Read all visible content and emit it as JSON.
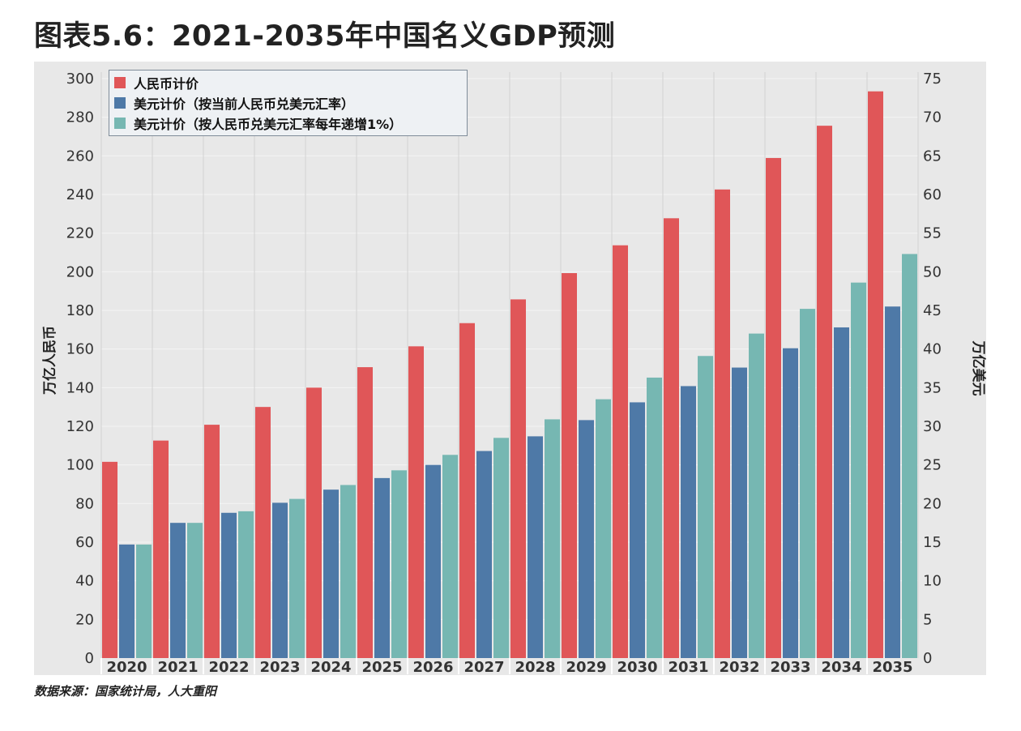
{
  "title": "图表5.6：2021-2035年中国名义GDP预测",
  "source": "数据来源：国家统计局，人大重阳",
  "chart_data": {
    "type": "bar",
    "categories": [
      "2020",
      "2021",
      "2022",
      "2023",
      "2024",
      "2025",
      "2026",
      "2027",
      "2028",
      "2029",
      "2030",
      "2031",
      "2032",
      "2033",
      "2034",
      "2035"
    ],
    "series": [
      {
        "name": "人民币计价",
        "axis": "left",
        "color": "#e05658",
        "values": [
          101.6,
          112.6,
          120.8,
          130,
          140,
          150.6,
          161.4,
          173.4,
          185.7,
          199.3,
          213.7,
          227.7,
          242.6,
          258.9,
          275.6,
          293.4
        ]
      },
      {
        "name": "美元计价（按当前人民币兑美元汇率）",
        "axis": "right",
        "color": "#4e79a7",
        "values": [
          14.7,
          17.5,
          18.8,
          20.1,
          21.8,
          23.3,
          25.0,
          26.8,
          28.7,
          30.8,
          33.1,
          35.2,
          37.6,
          40.1,
          42.8,
          45.5
        ]
      },
      {
        "name": "美元计价（按人民币兑美元汇率每年递增1%）",
        "axis": "right",
        "color": "#76b7b2",
        "values": [
          14.7,
          17.5,
          19.0,
          20.6,
          22.4,
          24.3,
          26.3,
          28.5,
          30.9,
          33.5,
          36.3,
          39.1,
          42.0,
          45.2,
          48.6,
          52.3
        ]
      }
    ],
    "ylabel_left": "万亿人民币",
    "ylabel_right": "万亿美元",
    "ylim_left": [
      0,
      300
    ],
    "ylim_right": [
      0,
      75
    ],
    "yticks_left": [
      "0",
      "20",
      "40",
      "60",
      "80",
      "100",
      "120",
      "140",
      "160",
      "180",
      "200",
      "220",
      "240",
      "260",
      "280",
      "300"
    ],
    "yticks_right": [
      "0",
      "5",
      "10",
      "15",
      "20",
      "25",
      "30",
      "35",
      "40",
      "45",
      "50",
      "55",
      "60",
      "65",
      "70",
      "75"
    ],
    "grid": true,
    "legend_position": "top-left"
  }
}
